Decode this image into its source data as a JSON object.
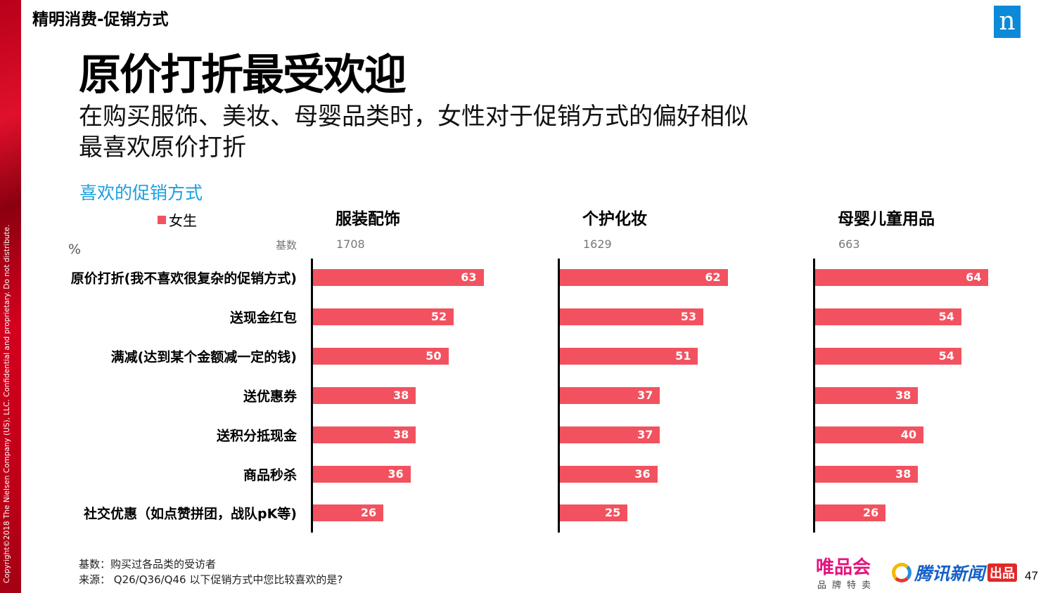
{
  "copyright": "Copyright©2018 The Nielsen Company (US), LLC. Confidential and proprietary. Do not distribute.",
  "section": "精明消费-促销方式",
  "logo": "n",
  "title": "原价打折最受欢迎",
  "subtitle": [
    "在购买服饰、美妆、母婴品类时，女性对于促销方式的偏好相似",
    "最喜欢原价打折"
  ],
  "colors": {
    "bar": "#f2525f",
    "accent": "#1aa0e0"
  },
  "chart_data": {
    "type": "bar",
    "orientation": "horizontal",
    "title": "喜欢的促销方式",
    "unit": "%",
    "base_label": "基数",
    "legend": [
      {
        "name": "女生",
        "color": "#f2525f"
      }
    ],
    "categories": [
      "原价打折(我不喜欢很复杂的促销方式)",
      "送现金红包",
      "满减(达到某个金额减一定的钱)",
      "送优惠券",
      "送积分抵现金",
      "商品秒杀",
      "社交优惠（如点赞拼团，战队pK等)"
    ],
    "panels": [
      {
        "name": "服装配饰",
        "base": "1708",
        "values": [
          63,
          52,
          50,
          38,
          38,
          36,
          26
        ]
      },
      {
        "name": "个护化妆",
        "base": "1629",
        "values": [
          62,
          53,
          51,
          37,
          37,
          36,
          25
        ]
      },
      {
        "name": "母婴儿童用品",
        "base": "663",
        "values": [
          64,
          54,
          54,
          38,
          40,
          38,
          26
        ]
      }
    ]
  },
  "notes": [
    "基数：购买过各品类的受访者",
    "来源：  Q26/Q36/Q46 以下促销方式中您比较喜欢的是?"
  ],
  "footer": {
    "vip": "唯品会",
    "vip_sub": "品牌特卖",
    "tencent": "腾讯新闻",
    "badge": "出品",
    "page": "47"
  }
}
